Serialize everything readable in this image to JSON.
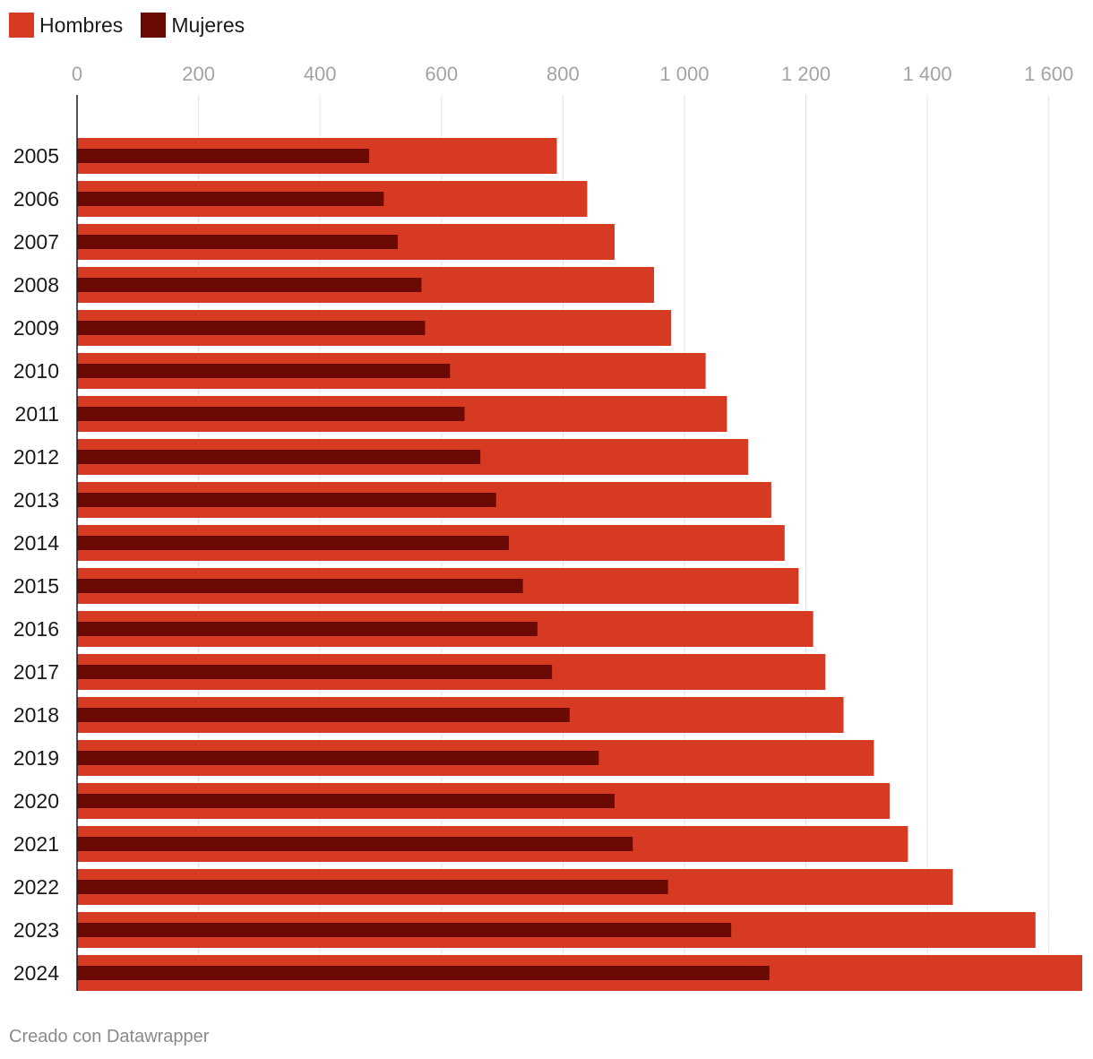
{
  "legend": {
    "items": [
      {
        "label": "Hombres",
        "color": "#d63a22"
      },
      {
        "label": "Mujeres",
        "color": "#6b0a02"
      }
    ]
  },
  "footer": {
    "credit": "Creado con Datawrapper"
  },
  "chart_data": {
    "type": "bar",
    "orientation": "horizontal",
    "categories": [
      "2005",
      "2006",
      "2007",
      "2008",
      "2009",
      "2010",
      "2011",
      "2012",
      "2013",
      "2014",
      "2015",
      "2016",
      "2017",
      "2018",
      "2019",
      "2020",
      "2021",
      "2022",
      "2023",
      "2024"
    ],
    "series": [
      {
        "name": "Hombres",
        "color": "#d63a22",
        "values": [
          790,
          840,
          885,
          950,
          978,
          1035,
          1070,
          1105,
          1143,
          1165,
          1188,
          1212,
          1232,
          1262,
          1312,
          1338,
          1368,
          1442,
          1578,
          1655
        ]
      },
      {
        "name": "Mujeres",
        "color": "#6b0a02",
        "values": [
          481,
          505,
          528,
          567,
          573,
          614,
          638,
          664,
          690,
          711,
          734,
          758,
          782,
          811,
          859,
          885,
          915,
          973,
          1077,
          1140
        ]
      }
    ],
    "xlim": [
      0,
      1655
    ],
    "xticks": [
      0,
      200,
      400,
      600,
      800,
      1000,
      1200,
      1400,
      1600
    ],
    "xtick_labels": [
      "0",
      "200",
      "400",
      "600",
      "800",
      "1 000",
      "1 200",
      "1 400",
      "1 600"
    ],
    "xaxis_position": "top",
    "grid": true,
    "legend_position": "top-left"
  }
}
